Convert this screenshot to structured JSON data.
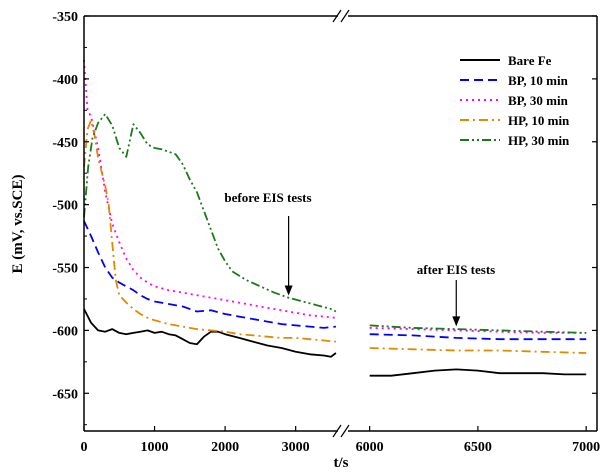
{
  "chart_data": {
    "type": "line",
    "title": "",
    "xlabel": "t/s",
    "ylabel": "E (mV, vs.SCE)",
    "ylim": [
      -680,
      -350
    ],
    "yticks": [
      "-350",
      "-400",
      "-450",
      "-500",
      "-550",
      "-600",
      "-650"
    ],
    "ytick_values": [
      -350,
      -400,
      -450,
      -500,
      -550,
      -600,
      -650
    ],
    "x_broken_axis": true,
    "x_segments": [
      {
        "range": [
          0,
          3600
        ],
        "ticks": [
          "0",
          "1000",
          "2000",
          "3000"
        ],
        "tick_values": [
          0,
          1000,
          2000,
          3000
        ]
      },
      {
        "range": [
          5900,
          7050
        ],
        "ticks": [
          "6000",
          "6500",
          "7000"
        ],
        "tick_values": [
          6000,
          6500,
          7000
        ]
      }
    ],
    "legend_position": "top-right",
    "series": [
      {
        "name": "Bare Fe",
        "color": "#000000",
        "dash": "solid",
        "before": [
          [
            0,
            -583
          ],
          [
            100,
            -594
          ],
          [
            200,
            -600
          ],
          [
            300,
            -601
          ],
          [
            400,
            -599
          ],
          [
            500,
            -602
          ],
          [
            600,
            -603
          ],
          [
            700,
            -602
          ],
          [
            800,
            -601
          ],
          [
            900,
            -600
          ],
          [
            1000,
            -602
          ],
          [
            1100,
            -601
          ],
          [
            1200,
            -603
          ],
          [
            1300,
            -604
          ],
          [
            1400,
            -607
          ],
          [
            1500,
            -610
          ],
          [
            1600,
            -611
          ],
          [
            1700,
            -605
          ],
          [
            1800,
            -601
          ],
          [
            1900,
            -601
          ],
          [
            2000,
            -603
          ],
          [
            2200,
            -606
          ],
          [
            2400,
            -609
          ],
          [
            2600,
            -612
          ],
          [
            2800,
            -614
          ],
          [
            3000,
            -617
          ],
          [
            3200,
            -619
          ],
          [
            3400,
            -620
          ],
          [
            3500,
            -621
          ],
          [
            3570,
            -618
          ]
        ],
        "after": [
          [
            6000,
            -636
          ],
          [
            6100,
            -636
          ],
          [
            6200,
            -634
          ],
          [
            6300,
            -632
          ],
          [
            6400,
            -631
          ],
          [
            6500,
            -632
          ],
          [
            6600,
            -634
          ],
          [
            6700,
            -634
          ],
          [
            6800,
            -634
          ],
          [
            6900,
            -635
          ],
          [
            7000,
            -635
          ]
        ]
      },
      {
        "name": "BP, 10 min",
        "color": "#0000ff",
        "dash": "long-dash",
        "before": [
          [
            0,
            -513
          ],
          [
            100,
            -525
          ],
          [
            200,
            -538
          ],
          [
            300,
            -550
          ],
          [
            400,
            -558
          ],
          [
            500,
            -562
          ],
          [
            600,
            -565
          ],
          [
            700,
            -568
          ],
          [
            800,
            -572
          ],
          [
            900,
            -575
          ],
          [
            1000,
            -577
          ],
          [
            1200,
            -579
          ],
          [
            1400,
            -581
          ],
          [
            1600,
            -585
          ],
          [
            1800,
            -584
          ],
          [
            2000,
            -587
          ],
          [
            2200,
            -589
          ],
          [
            2400,
            -591
          ],
          [
            2600,
            -593
          ],
          [
            2800,
            -595
          ],
          [
            3000,
            -596
          ],
          [
            3200,
            -597
          ],
          [
            3400,
            -598
          ],
          [
            3570,
            -597
          ]
        ],
        "after": [
          [
            6000,
            -603
          ],
          [
            6200,
            -604
          ],
          [
            6400,
            -606
          ],
          [
            6600,
            -607
          ],
          [
            6800,
            -607
          ],
          [
            7000,
            -607
          ]
        ]
      },
      {
        "name": "BP, 30 min",
        "color": "#ff00ff",
        "dash": "dot",
        "before": [
          [
            0,
            -385
          ],
          [
            50,
            -425
          ],
          [
            100,
            -430
          ],
          [
            200,
            -455
          ],
          [
            300,
            -490
          ],
          [
            400,
            -515
          ],
          [
            500,
            -530
          ],
          [
            600,
            -543
          ],
          [
            700,
            -552
          ],
          [
            800,
            -558
          ],
          [
            900,
            -562
          ],
          [
            1000,
            -565
          ],
          [
            1200,
            -568
          ],
          [
            1400,
            -570
          ],
          [
            1600,
            -572
          ],
          [
            1800,
            -574
          ],
          [
            2000,
            -576
          ],
          [
            2200,
            -578
          ],
          [
            2400,
            -580
          ],
          [
            2600,
            -582
          ],
          [
            2800,
            -584
          ],
          [
            3000,
            -586
          ],
          [
            3200,
            -588
          ],
          [
            3400,
            -589
          ],
          [
            3570,
            -590
          ]
        ],
        "after": [
          [
            6000,
            -598
          ],
          [
            6200,
            -599
          ],
          [
            6400,
            -600
          ],
          [
            6600,
            -601
          ],
          [
            6800,
            -602
          ],
          [
            7000,
            -602
          ]
        ]
      },
      {
        "name": "HP, 10 min",
        "color": "#e08a00",
        "dash": "dash-dot",
        "before": [
          [
            0,
            -470
          ],
          [
            50,
            -440
          ],
          [
            100,
            -433
          ],
          [
            150,
            -445
          ],
          [
            200,
            -463
          ],
          [
            300,
            -485
          ],
          [
            350,
            -500
          ],
          [
            400,
            -530
          ],
          [
            450,
            -560
          ],
          [
            500,
            -572
          ],
          [
            600,
            -578
          ],
          [
            700,
            -583
          ],
          [
            800,
            -587
          ],
          [
            900,
            -590
          ],
          [
            1000,
            -592
          ],
          [
            1200,
            -595
          ],
          [
            1400,
            -597
          ],
          [
            1600,
            -599
          ],
          [
            1800,
            -600
          ],
          [
            2000,
            -601
          ],
          [
            2200,
            -603
          ],
          [
            2400,
            -604
          ],
          [
            2600,
            -605
          ],
          [
            2800,
            -606
          ],
          [
            3000,
            -606
          ],
          [
            3200,
            -607
          ],
          [
            3400,
            -608
          ],
          [
            3570,
            -609
          ]
        ],
        "after": [
          [
            6000,
            -614
          ],
          [
            6200,
            -615
          ],
          [
            6400,
            -616
          ],
          [
            6600,
            -616
          ],
          [
            6800,
            -617
          ],
          [
            7000,
            -618
          ]
        ]
      },
      {
        "name": "HP, 30 min",
        "color": "#1a7a1a",
        "dash": "dash-dot-dot",
        "before": [
          [
            0,
            -510
          ],
          [
            60,
            -470
          ],
          [
            120,
            -447
          ],
          [
            200,
            -435
          ],
          [
            300,
            -428
          ],
          [
            400,
            -437
          ],
          [
            500,
            -455
          ],
          [
            600,
            -462
          ],
          [
            700,
            -436
          ],
          [
            800,
            -443
          ],
          [
            900,
            -452
          ],
          [
            1000,
            -455
          ],
          [
            1100,
            -456
          ],
          [
            1200,
            -458
          ],
          [
            1300,
            -460
          ],
          [
            1400,
            -468
          ],
          [
            1500,
            -480
          ],
          [
            1600,
            -490
          ],
          [
            1700,
            -505
          ],
          [
            1800,
            -520
          ],
          [
            1900,
            -535
          ],
          [
            2000,
            -545
          ],
          [
            2100,
            -553
          ],
          [
            2300,
            -560
          ],
          [
            2500,
            -565
          ],
          [
            2700,
            -570
          ],
          [
            2900,
            -574
          ],
          [
            3100,
            -577
          ],
          [
            3300,
            -580
          ],
          [
            3500,
            -583
          ],
          [
            3570,
            -585
          ]
        ],
        "after": [
          [
            6000,
            -596
          ],
          [
            6200,
            -598
          ],
          [
            6400,
            -599
          ],
          [
            6600,
            -600
          ],
          [
            6800,
            -601
          ],
          [
            7000,
            -602
          ]
        ]
      }
    ],
    "annotations": [
      {
        "text": "before EIS tests",
        "arrow_to": [
          2900,
          -577
        ]
      },
      {
        "text": "after EIS tests",
        "arrow_to": [
          6400,
          -600
        ]
      }
    ]
  }
}
